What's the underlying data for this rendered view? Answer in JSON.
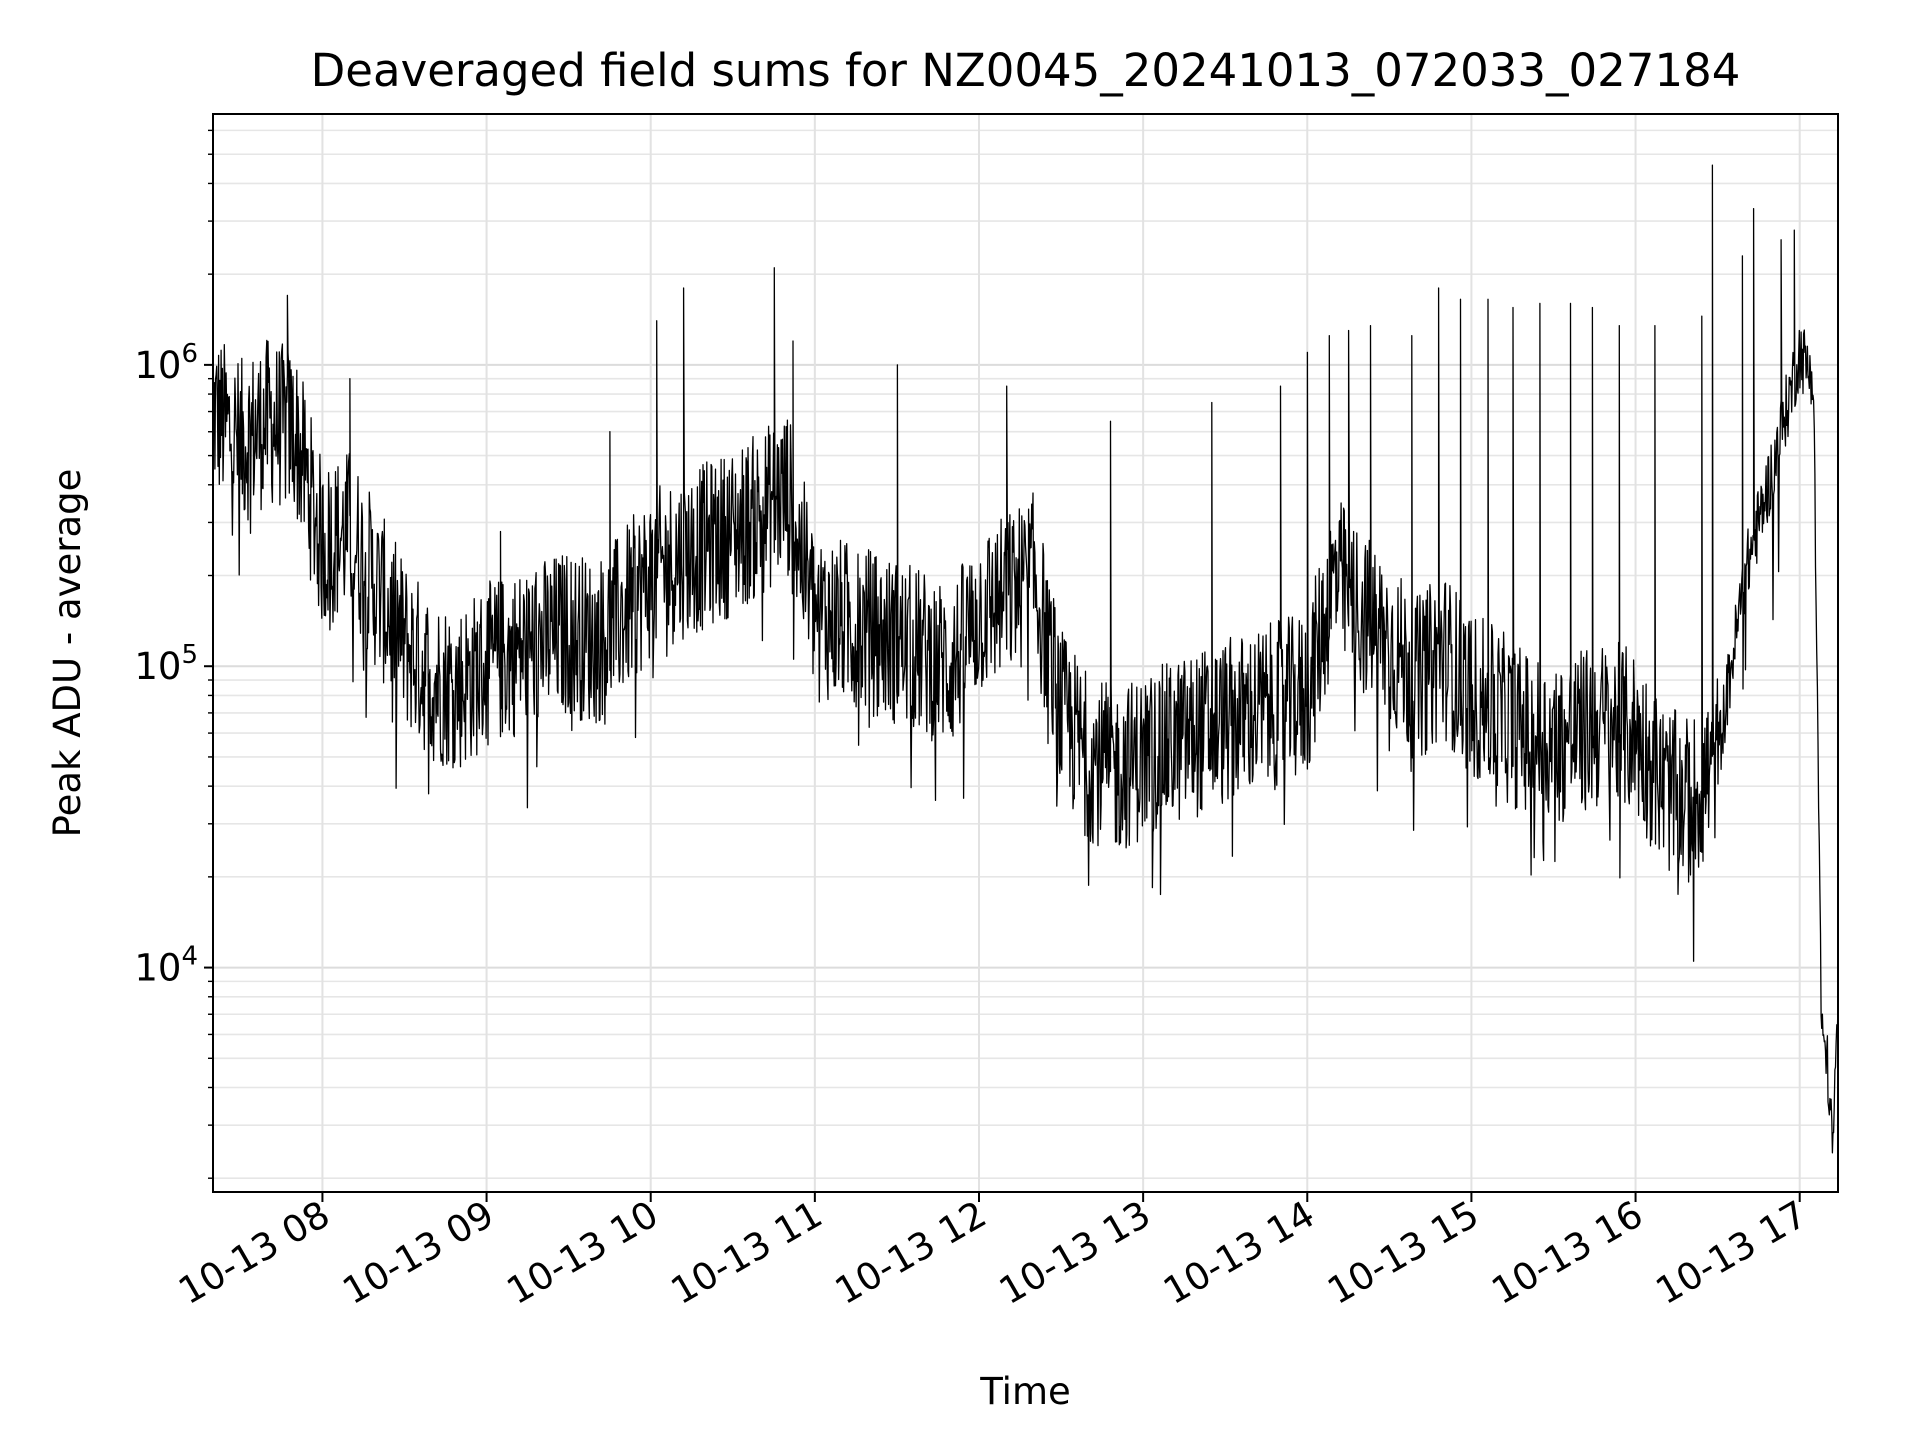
{
  "chart_data": {
    "type": "line",
    "title": "Deaveraged field sums for NZ0045_20241013_072033_027184",
    "xlabel": "Time",
    "ylabel": "Peak ADU - average",
    "yscale": "log",
    "grid": true,
    "xlim": [
      "10-13 07:20",
      "10-13 17:14"
    ],
    "ylim": [
      1800,
      6800000
    ],
    "xticks": [
      "10-13 08",
      "10-13 09",
      "10-13 10",
      "10-13 11",
      "10-13 12",
      "10-13 13",
      "10-13 14",
      "10-13 15",
      "10-13 16",
      "10-13 17"
    ],
    "yticks": [
      {
        "value": 10000,
        "base": "10",
        "exp": "4"
      },
      {
        "value": 100000,
        "base": "10",
        "exp": "5"
      },
      {
        "value": 1000000,
        "base": "10",
        "exp": "6"
      }
    ],
    "series": [
      {
        "color": "#000000",
        "x": [
          "07:20",
          "07:30",
          "07:40",
          "07:50",
          "08:00",
          "08:10",
          "08:20",
          "08:30",
          "08:40",
          "08:50",
          "09:00",
          "09:10",
          "09:20",
          "09:30",
          "09:40",
          "09:50",
          "10:00",
          "10:10",
          "10:20",
          "10:30",
          "10:40",
          "10:50",
          "11:00",
          "11:10",
          "11:20",
          "11:30",
          "11:40",
          "11:50",
          "12:00",
          "12:10",
          "12:20",
          "12:30",
          "12:40",
          "12:50",
          "13:00",
          "13:10",
          "13:20",
          "13:30",
          "13:40",
          "13:50",
          "14:00",
          "14:10",
          "14:20",
          "14:30",
          "14:40",
          "14:50",
          "15:00",
          "15:10",
          "15:20",
          "15:30",
          "15:40",
          "15:50",
          "16:00",
          "16:10",
          "16:20",
          "16:30",
          "16:40",
          "16:50",
          "17:00",
          "17:05",
          "17:08",
          "17:10",
          "17:12",
          "17:14"
        ],
        "y": [
          700000,
          550000,
          650000,
          600000,
          250000,
          280000,
          180000,
          120000,
          90000,
          85000,
          100000,
          110000,
          120000,
          130000,
          120000,
          150000,
          200000,
          230000,
          250000,
          280000,
          320000,
          380000,
          150000,
          140000,
          130000,
          120000,
          110000,
          100000,
          150000,
          170000,
          200000,
          70000,
          50000,
          45000,
          50000,
          55000,
          60000,
          65000,
          70000,
          75000,
          80000,
          200000,
          150000,
          120000,
          90000,
          110000,
          80000,
          70000,
          60000,
          55000,
          60000,
          65000,
          60000,
          40000,
          35000,
          50000,
          200000,
          450000,
          1100000,
          900000,
          6000,
          5000,
          2500,
          7000
        ],
        "spikes": [
          {
            "x": "07:47",
            "y": 1700000
          },
          {
            "x": "08:10",
            "y": 900000
          },
          {
            "x": "09:05",
            "y": 280000
          },
          {
            "x": "09:45",
            "y": 600000
          },
          {
            "x": "10:02",
            "y": 1400000
          },
          {
            "x": "10:12",
            "y": 1800000
          },
          {
            "x": "10:45",
            "y": 2100000
          },
          {
            "x": "10:52",
            "y": 1200000
          },
          {
            "x": "11:30",
            "y": 1000000
          },
          {
            "x": "12:10",
            "y": 850000
          },
          {
            "x": "12:48",
            "y": 650000
          },
          {
            "x": "13:25",
            "y": 750000
          },
          {
            "x": "13:50",
            "y": 850000
          },
          {
            "x": "14:00",
            "y": 1100000
          },
          {
            "x": "14:08",
            "y": 1250000
          },
          {
            "x": "14:15",
            "y": 1300000
          },
          {
            "x": "14:23",
            "y": 1350000
          },
          {
            "x": "14:38",
            "y": 1250000
          },
          {
            "x": "14:48",
            "y": 1800000
          },
          {
            "x": "14:56",
            "y": 1650000
          },
          {
            "x": "15:06",
            "y": 1650000
          },
          {
            "x": "15:15",
            "y": 1550000
          },
          {
            "x": "15:25",
            "y": 1600000
          },
          {
            "x": "15:36",
            "y": 1600000
          },
          {
            "x": "15:44",
            "y": 1550000
          },
          {
            "x": "15:54",
            "y": 1350000
          },
          {
            "x": "16:07",
            "y": 1350000
          },
          {
            "x": "16:24",
            "y": 1450000
          },
          {
            "x": "16:28",
            "y": 4600000
          },
          {
            "x": "16:39",
            "y": 2300000
          },
          {
            "x": "16:43",
            "y": 3300000
          },
          {
            "x": "16:53",
            "y": 2600000
          },
          {
            "x": "16:58",
            "y": 2800000
          }
        ]
      }
    ]
  }
}
